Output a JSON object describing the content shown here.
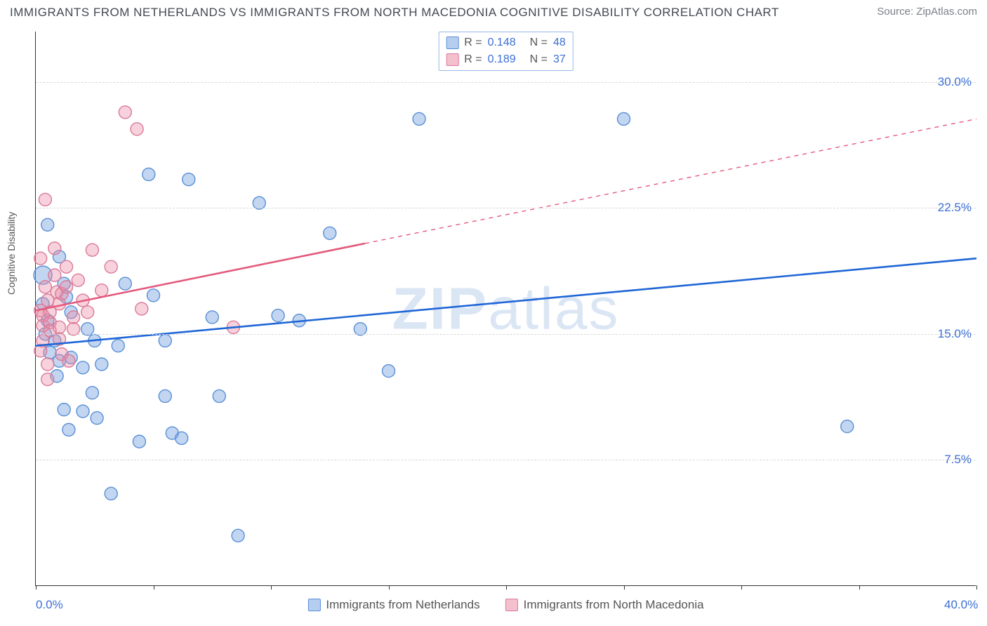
{
  "header": {
    "title": "IMMIGRANTS FROM NETHERLANDS VS IMMIGRANTS FROM NORTH MACEDONIA COGNITIVE DISABILITY CORRELATION CHART",
    "source_label": "Source: ",
    "source_value": "ZipAtlas.com"
  },
  "watermark": {
    "part1": "ZIP",
    "part2": "atlas"
  },
  "chart": {
    "type": "scatter",
    "ylabel": "Cognitive Disability",
    "xlim": [
      0,
      40
    ],
    "ylim": [
      0,
      33
    ],
    "ytick_step": 7.5,
    "xtick_step": 10,
    "yticks": [
      {
        "v": 7.5,
        "label": "7.5%"
      },
      {
        "v": 15.0,
        "label": "15.0%"
      },
      {
        "v": 22.5,
        "label": "22.5%"
      },
      {
        "v": 30.0,
        "label": "30.0%"
      }
    ],
    "xticks_minor": [
      0,
      5,
      10,
      15,
      20,
      25,
      30,
      35,
      40
    ],
    "x_labels": [
      {
        "v": 0,
        "label": "0.0%"
      },
      {
        "v": 40,
        "label": "40.0%"
      }
    ],
    "grid_color": "#d8d8d8",
    "background_color": "#ffffff",
    "point_radius": 9,
    "point_stroke_width": 1.4,
    "trend_width": 2.6,
    "series": [
      {
        "name": "Immigrants from Netherlands",
        "label": "Immigrants from Netherlands",
        "fill": "rgba(120,165,225,0.45)",
        "stroke": "#5a8fd6",
        "line_color": "#1f66d6",
        "R": "0.148",
        "N": "48",
        "trend": {
          "x1": 0,
          "y1": 14.3,
          "x2": 40,
          "y2": 19.5,
          "dash_after_x": 40
        },
        "points": [
          [
            0.3,
            18.5,
            13
          ],
          [
            0.3,
            16.8
          ],
          [
            0.5,
            15.8
          ],
          [
            0.4,
            15.0
          ],
          [
            0.8,
            14.6
          ],
          [
            0.6,
            13.9
          ],
          [
            0.5,
            21.5
          ],
          [
            1.0,
            19.6
          ],
          [
            1.2,
            18.0
          ],
          [
            1.3,
            17.2
          ],
          [
            1.5,
            16.3
          ],
          [
            1.5,
            13.6
          ],
          [
            1.0,
            13.4
          ],
          [
            0.9,
            12.5
          ],
          [
            1.2,
            10.5
          ],
          [
            2.0,
            13.0
          ],
          [
            2.2,
            15.3
          ],
          [
            2.5,
            14.6
          ],
          [
            2.8,
            13.2
          ],
          [
            2.4,
            11.5
          ],
          [
            2.0,
            10.4
          ],
          [
            2.6,
            10.0
          ],
          [
            1.4,
            9.3
          ],
          [
            3.2,
            5.5
          ],
          [
            3.5,
            14.3
          ],
          [
            3.8,
            18.0
          ],
          [
            4.4,
            8.6
          ],
          [
            4.8,
            24.5
          ],
          [
            5.0,
            17.3
          ],
          [
            5.5,
            14.6
          ],
          [
            5.5,
            11.3
          ],
          [
            5.8,
            9.1
          ],
          [
            6.2,
            8.8
          ],
          [
            6.5,
            24.2
          ],
          [
            7.5,
            16.0
          ],
          [
            7.8,
            11.3
          ],
          [
            8.6,
            3.0
          ],
          [
            9.5,
            22.8
          ],
          [
            10.3,
            16.1
          ],
          [
            11.2,
            15.8
          ],
          [
            12.5,
            21.0
          ],
          [
            13.8,
            15.3
          ],
          [
            15.0,
            12.8
          ],
          [
            16.3,
            27.8
          ],
          [
            25.0,
            27.8
          ],
          [
            34.5,
            9.5
          ]
        ]
      },
      {
        "name": "Immigrants from North Macedonia",
        "label": "Immigrants from North Macedonia",
        "fill": "rgba(235,140,165,0.40)",
        "stroke": "#d97a9a",
        "line_color": "#e35a7d",
        "R": "0.189",
        "N": "37",
        "trend": {
          "x1": 0,
          "y1": 16.4,
          "x2": 40,
          "y2": 27.8,
          "dash_after_x": 14
        },
        "points": [
          [
            0.2,
            19.5
          ],
          [
            0.2,
            16.4
          ],
          [
            0.3,
            16.1
          ],
          [
            0.3,
            15.5
          ],
          [
            0.3,
            14.6
          ],
          [
            0.2,
            14.0
          ],
          [
            0.4,
            17.8
          ],
          [
            0.5,
            17.0
          ],
          [
            0.6,
            16.3
          ],
          [
            0.6,
            15.7
          ],
          [
            0.6,
            15.2
          ],
          [
            0.5,
            13.2
          ],
          [
            0.5,
            12.3
          ],
          [
            0.4,
            23.0
          ],
          [
            0.8,
            20.1
          ],
          [
            0.8,
            18.5
          ],
          [
            0.9,
            17.5
          ],
          [
            1.0,
            16.8
          ],
          [
            1.0,
            15.4
          ],
          [
            1.0,
            14.7
          ],
          [
            1.1,
            13.8
          ],
          [
            1.1,
            17.4
          ],
          [
            1.3,
            19.0
          ],
          [
            1.3,
            17.8
          ],
          [
            1.4,
            13.4
          ],
          [
            1.6,
            16.0
          ],
          [
            1.6,
            15.3
          ],
          [
            1.8,
            18.2
          ],
          [
            2.0,
            17.0
          ],
          [
            2.2,
            16.3
          ],
          [
            2.4,
            20.0
          ],
          [
            2.8,
            17.6
          ],
          [
            3.2,
            19.0
          ],
          [
            3.8,
            28.2
          ],
          [
            4.3,
            27.2
          ],
          [
            4.5,
            16.5
          ],
          [
            8.4,
            15.4
          ]
        ]
      }
    ]
  },
  "bottom_legend": [
    {
      "swatch": "blue",
      "label_path": "chart.series.0.label"
    },
    {
      "swatch": "pink",
      "label_path": "chart.series.1.label"
    }
  ]
}
